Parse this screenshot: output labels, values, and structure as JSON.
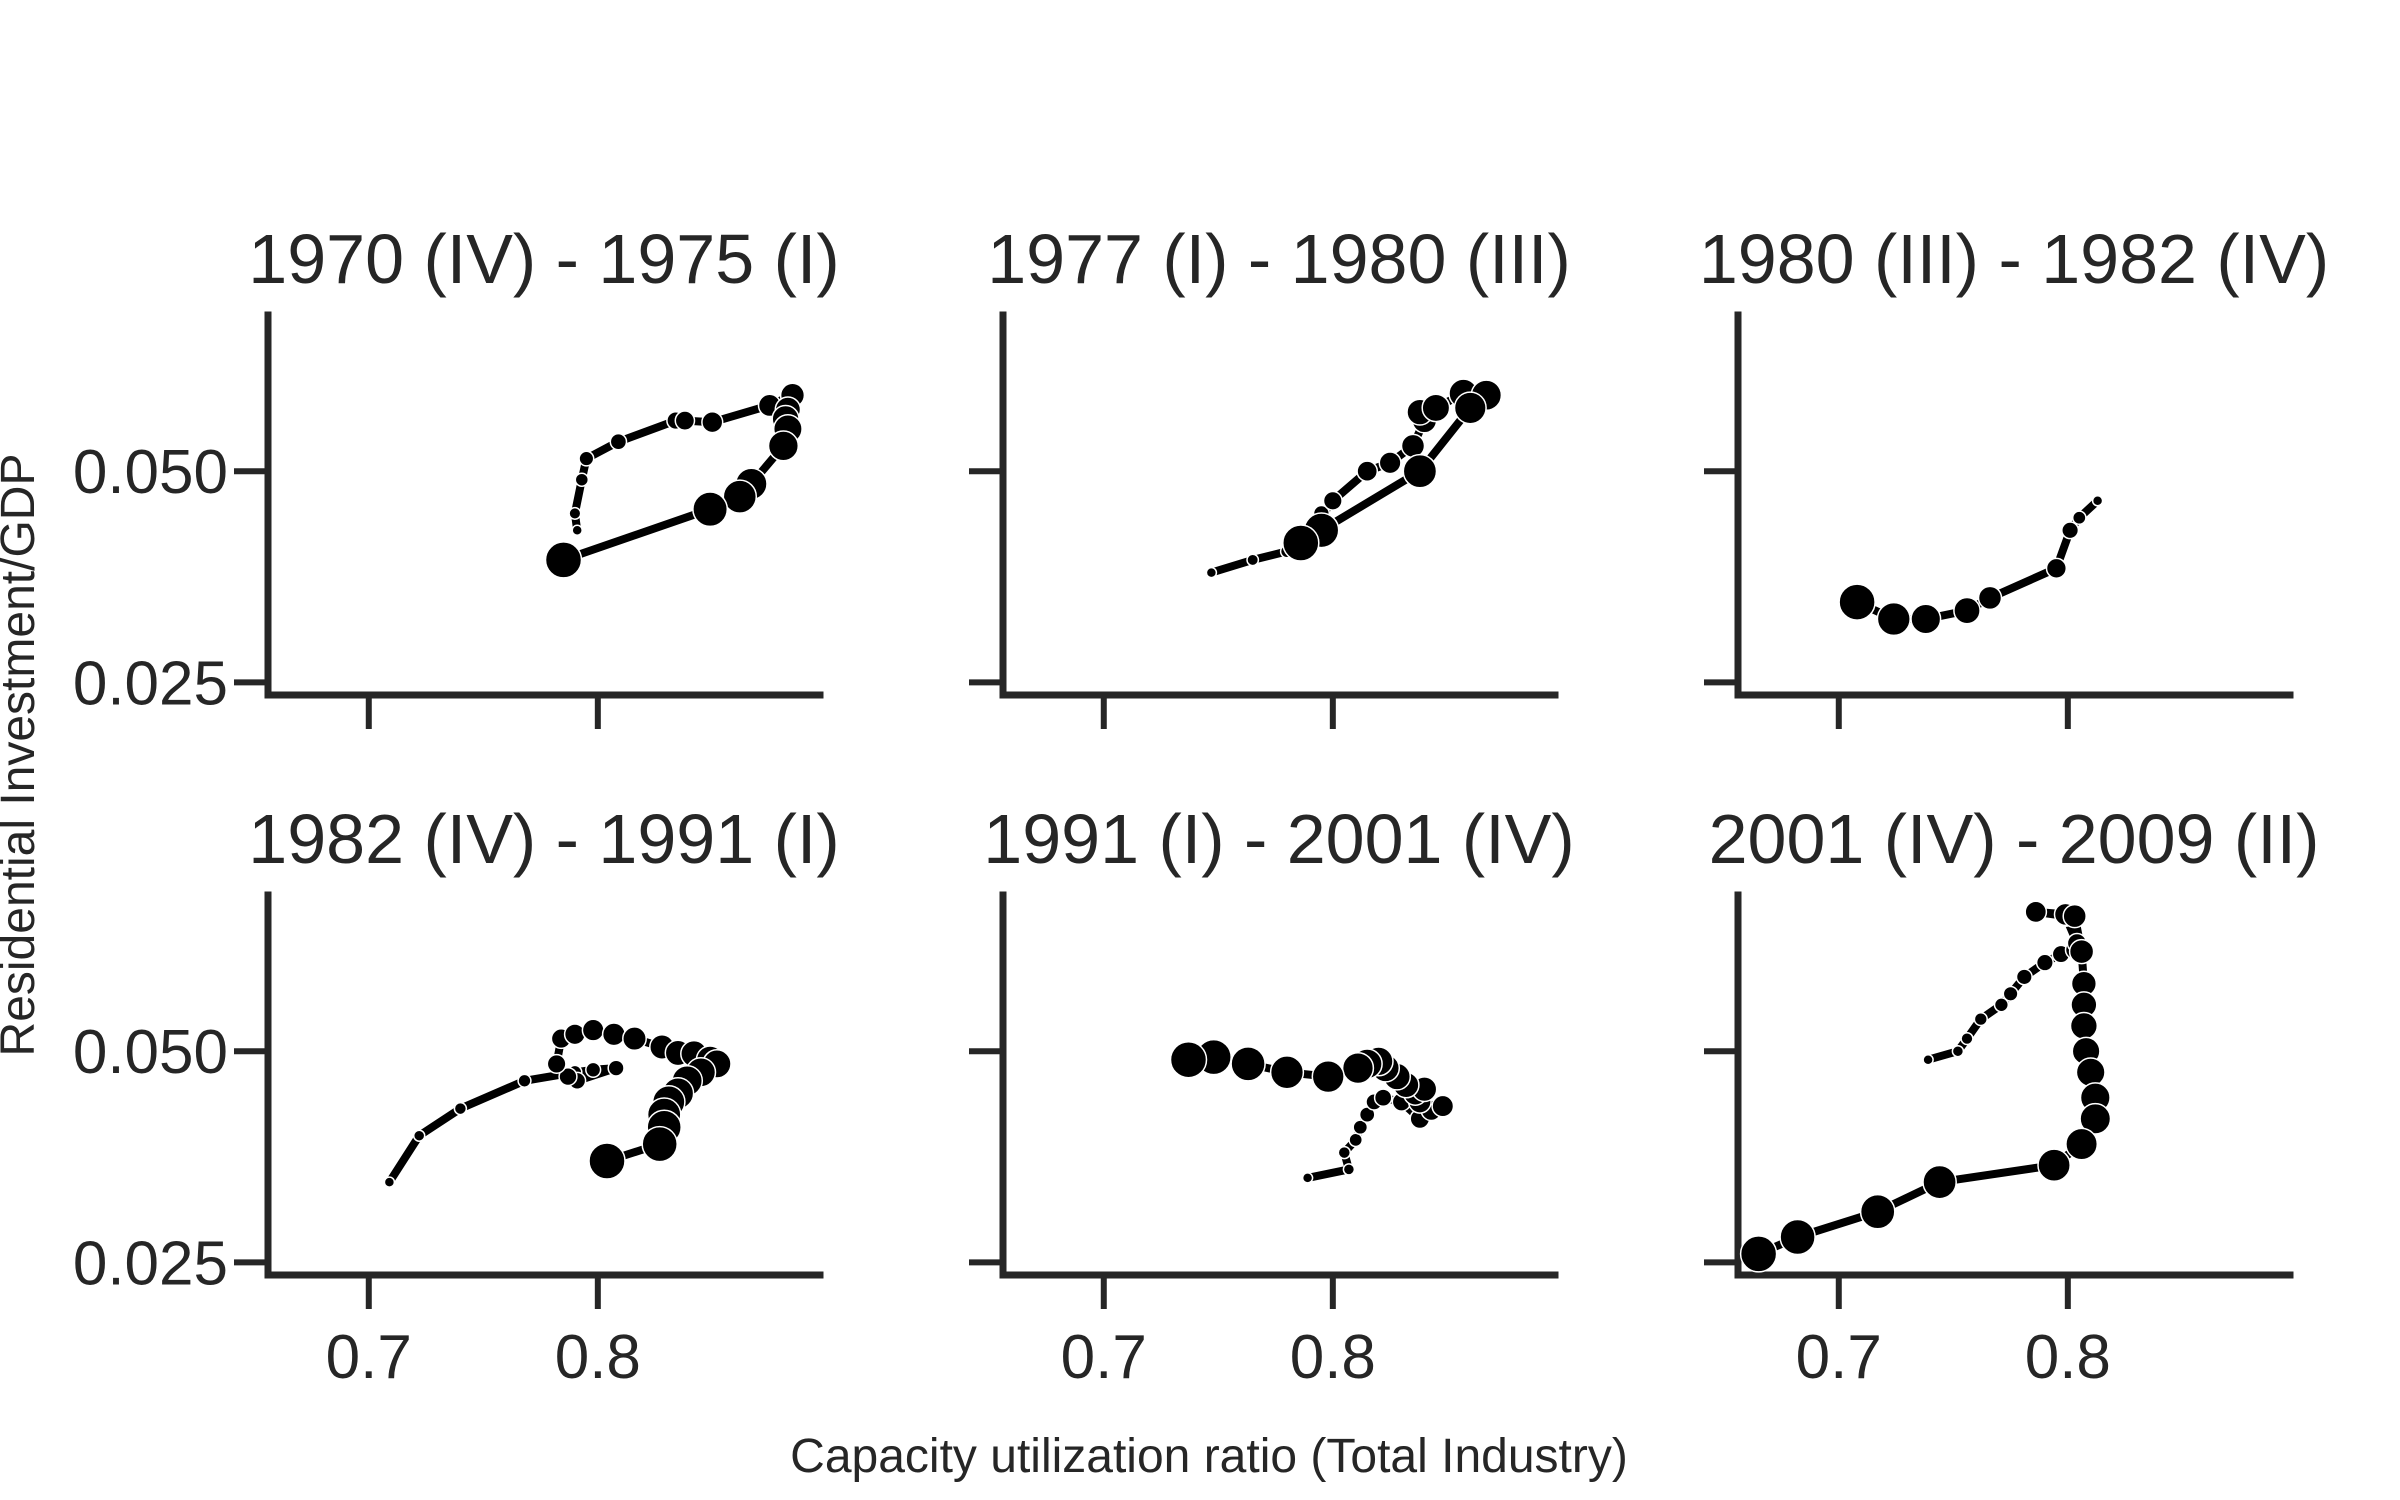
{
  "chart_data": {
    "type": "scatter",
    "xlabel": "Capacity utilization ratio (Total Industry)",
    "ylabel": "Residential Investment/GDP",
    "xlim": [
      0.656,
      0.897
    ],
    "ylim": [
      0.0235,
      0.0685
    ],
    "xticks": [
      0.7,
      0.8
    ],
    "yticks": [
      0.025,
      0.05
    ],
    "xtick_labels": [
      "0.7",
      "0.8"
    ],
    "ytick_labels": [
      "0.025",
      "0.050"
    ],
    "panels": [
      {
        "title": "1970 (IV) - 1975 (I)",
        "x": [
          0.791,
          0.79,
          0.793,
          0.795,
          0.809,
          0.834,
          0.838,
          0.85,
          0.875,
          0.885,
          0.883,
          0.882,
          0.883,
          0.881,
          0.867,
          0.862,
          0.849,
          0.785
        ],
        "y": [
          0.043,
          0.045,
          0.049,
          0.0515,
          0.0535,
          0.056,
          0.056,
          0.0558,
          0.0578,
          0.059,
          0.0573,
          0.0562,
          0.055,
          0.053,
          0.0485,
          0.047,
          0.0455,
          0.0395
        ]
      },
      {
        "title": "1977 (I) - 1980 (III)",
        "x": [
          0.747,
          0.765,
          0.78,
          0.79,
          0.795,
          0.788,
          0.8,
          0.815,
          0.825,
          0.835,
          0.84,
          0.838,
          0.845,
          0.857,
          0.867,
          0.86,
          0.838,
          0.795,
          0.786
        ],
        "y": [
          0.038,
          0.0395,
          0.0405,
          0.0425,
          0.045,
          0.042,
          0.0465,
          0.05,
          0.051,
          0.053,
          0.056,
          0.057,
          0.0575,
          0.0592,
          0.059,
          0.0575,
          0.05,
          0.043,
          0.0415
        ]
      },
      {
        "title": "1980 (III) - 1982 (IV)",
        "x": [
          0.813,
          0.805,
          0.801,
          0.795,
          0.766,
          0.756,
          0.738,
          0.724,
          0.708
        ],
        "y": [
          0.0465,
          0.0445,
          0.043,
          0.0385,
          0.035,
          0.0335,
          0.0325,
          0.0325,
          0.0345
        ]
      },
      {
        "title": "1982 (IV) - 1991 (I)",
        "x": [
          0.709,
          0.722,
          0.74,
          0.768,
          0.79,
          0.798,
          0.808,
          0.791,
          0.787,
          0.782,
          0.784,
          0.79,
          0.798,
          0.807,
          0.816,
          0.828,
          0.835,
          0.842,
          0.849,
          0.852,
          0.845,
          0.839,
          0.835,
          0.831,
          0.829,
          0.829,
          0.827,
          0.804
        ],
        "y": [
          0.0345,
          0.04,
          0.0432,
          0.0465,
          0.0475,
          0.0478,
          0.048,
          0.0465,
          0.047,
          0.0485,
          0.0515,
          0.052,
          0.0525,
          0.052,
          0.0515,
          0.0505,
          0.0498,
          0.0497,
          0.049,
          0.0485,
          0.0475,
          0.0465,
          0.045,
          0.044,
          0.0425,
          0.041,
          0.039,
          0.037
        ]
      },
      {
        "title": "1991 (I) - 2001 (IV)",
        "x": [
          0.789,
          0.807,
          0.805,
          0.81,
          0.812,
          0.815,
          0.818,
          0.822,
          0.83,
          0.838,
          0.843,
          0.848,
          0.838,
          0.836,
          0.84,
          0.832,
          0.828,
          0.823,
          0.82,
          0.815,
          0.811,
          0.798,
          0.78,
          0.763,
          0.748,
          0.737
        ],
        "y": [
          0.035,
          0.036,
          0.038,
          0.0395,
          0.041,
          0.0425,
          0.044,
          0.0445,
          0.044,
          0.042,
          0.043,
          0.0435,
          0.044,
          0.045,
          0.0455,
          0.046,
          0.047,
          0.048,
          0.0488,
          0.0485,
          0.048,
          0.047,
          0.0475,
          0.0485,
          0.0493,
          0.049
        ]
      },
      {
        "title": "2001 (IV) - 2009 (II)",
        "x": [
          0.739,
          0.752,
          0.756,
          0.762,
          0.771,
          0.775,
          0.781,
          0.79,
          0.797,
          0.803,
          0.804,
          0.799,
          0.786,
          0.799,
          0.803,
          0.806,
          0.807,
          0.807,
          0.807,
          0.808,
          0.81,
          0.812,
          0.812,
          0.806,
          0.794,
          0.744,
          0.717,
          0.682,
          0.665
        ],
        "y": [
          0.049,
          0.05,
          0.0515,
          0.0538,
          0.0555,
          0.0568,
          0.0588,
          0.0605,
          0.0615,
          0.062,
          0.0628,
          0.066,
          0.0665,
          0.0662,
          0.066,
          0.0618,
          0.058,
          0.0555,
          0.053,
          0.05,
          0.0475,
          0.0445,
          0.042,
          0.039,
          0.0365,
          0.0345,
          0.031,
          0.028,
          0.026
        ]
      }
    ]
  }
}
